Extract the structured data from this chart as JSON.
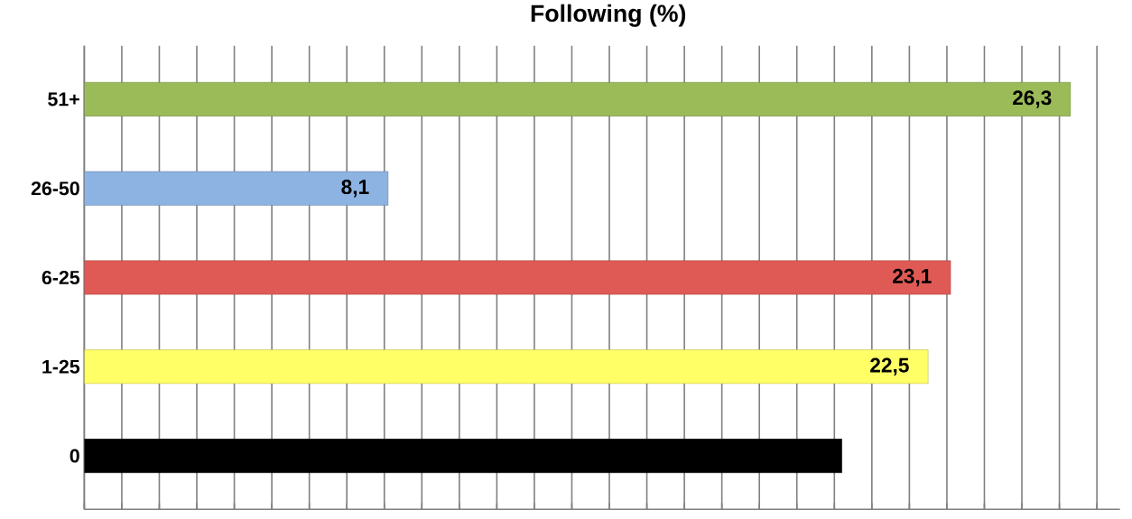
{
  "chart_data": {
    "type": "bar",
    "orientation": "horizontal",
    "title": "Following  (%)",
    "categories": [
      "51+",
      "26-50",
      "6-25",
      "1-25",
      "0"
    ],
    "values": [
      26.3,
      8.1,
      23.1,
      22.5,
      20.2
    ],
    "value_labels": [
      "26,3",
      "8,1",
      "23,1",
      "22,5",
      null
    ],
    "colors": [
      "#9bbb59",
      "#8db3e2",
      "#e05a55",
      "#ffff66",
      "#000000"
    ],
    "grid": "x",
    "tick_labels": "y"
  }
}
